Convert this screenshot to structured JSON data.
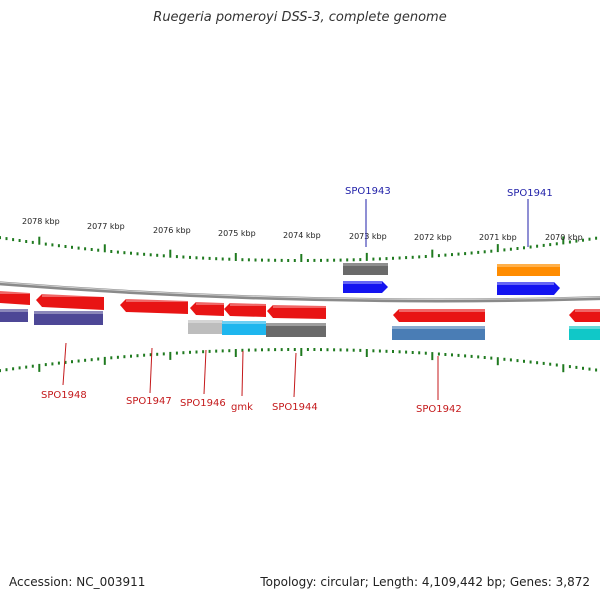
{
  "title": "Ruegeria pomeroyi DSS-3, complete genome",
  "footer": {
    "accession": "Accession: NC_003911",
    "summary": "Topology: circular; Length: 4,109,442 bp; Genes: 3,872"
  },
  "tick_labels": [
    "2078 kbp",
    "2077 kbp",
    "2076 kbp",
    "2075 kbp",
    "2074 kbp",
    "2073 kbp",
    "2072 kbp",
    "2071 kbp",
    "2070 kbp"
  ],
  "gene_labels_top": [
    "SPO1943",
    "SPO1941"
  ],
  "gene_labels_bottom": [
    "SPO1948",
    "SPO1947",
    "SPO1946",
    "gmk",
    "SPO1944",
    "SPO1942"
  ],
  "colors": {
    "forward_gene": "#1414f0",
    "reverse_gene": "#e81414",
    "cog_purple": "#4d4796",
    "cog_gray": "#6a6a6a",
    "cog_light_gray": "#bdbdbd",
    "cog_cyan": "#1eb6ee",
    "cog_orange": "#ff8c00",
    "cog_steelblue": "#4a7db5",
    "cog_teal": "#10c8c8",
    "tick_green": "#1f7a1f",
    "backbone": "#8a8a8a",
    "label_top": "#1f1fa8",
    "label_bottom": "#c4191b"
  }
}
